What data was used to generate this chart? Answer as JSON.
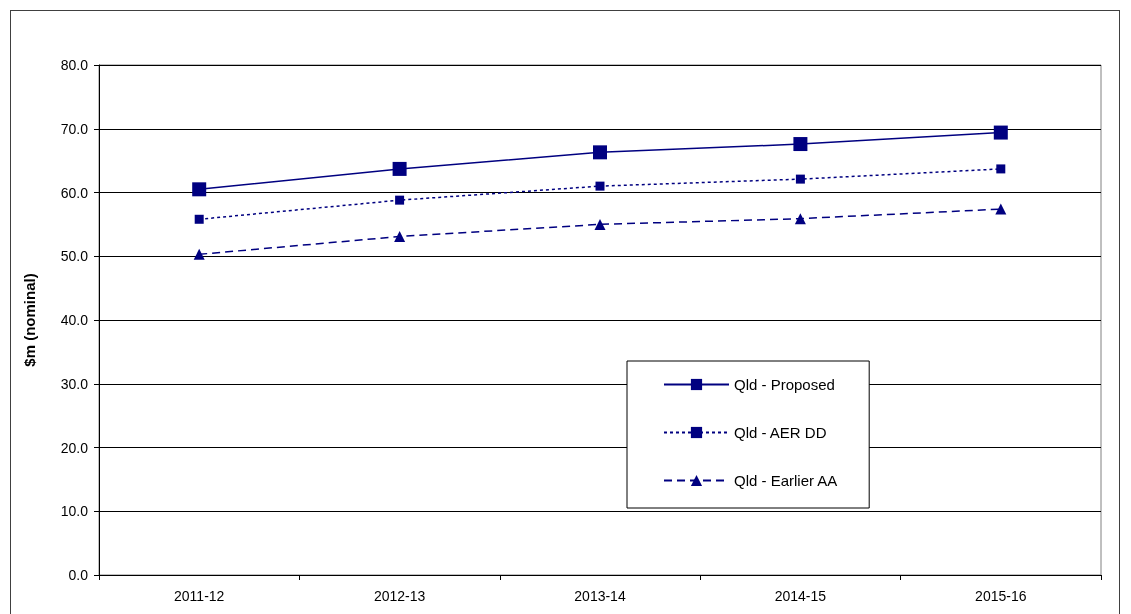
{
  "chart_data": {
    "type": "line",
    "ylabel": "$m (nominal)",
    "categories": [
      "2011-12",
      "2012-13",
      "2013-14",
      "2014-15",
      "2015-16"
    ],
    "series": [
      {
        "name": "Qld - Proposed",
        "color": "#000080",
        "marker": "square",
        "line_style": "solid",
        "values": [
          60.5,
          63.7,
          66.3,
          67.6,
          69.4
        ]
      },
      {
        "name": "Qld - AER DD",
        "color": "#000080",
        "marker": "square",
        "line_style": "dotted",
        "values": [
          55.8,
          58.8,
          61.0,
          62.1,
          63.7
        ]
      },
      {
        "name": "Qld - Earlier AA",
        "color": "#000080",
        "marker": "triangle",
        "line_style": "dashed",
        "values": [
          50.3,
          53.1,
          55.0,
          55.9,
          57.4
        ]
      }
    ],
    "ylim": [
      0,
      80
    ],
    "yticks": [
      {
        "value": 0,
        "label": "0.0"
      },
      {
        "value": 10,
        "label": "10.0"
      },
      {
        "value": 20,
        "label": "20.0"
      },
      {
        "value": 30,
        "label": "30.0"
      },
      {
        "value": 40,
        "label": "40.0"
      },
      {
        "value": 50,
        "label": "50.0"
      },
      {
        "value": 60,
        "label": "60.0"
      },
      {
        "value": 70,
        "label": "70.0"
      },
      {
        "value": 80,
        "label": "80.0"
      }
    ],
    "grid": "y",
    "legend": "bottom right"
  }
}
